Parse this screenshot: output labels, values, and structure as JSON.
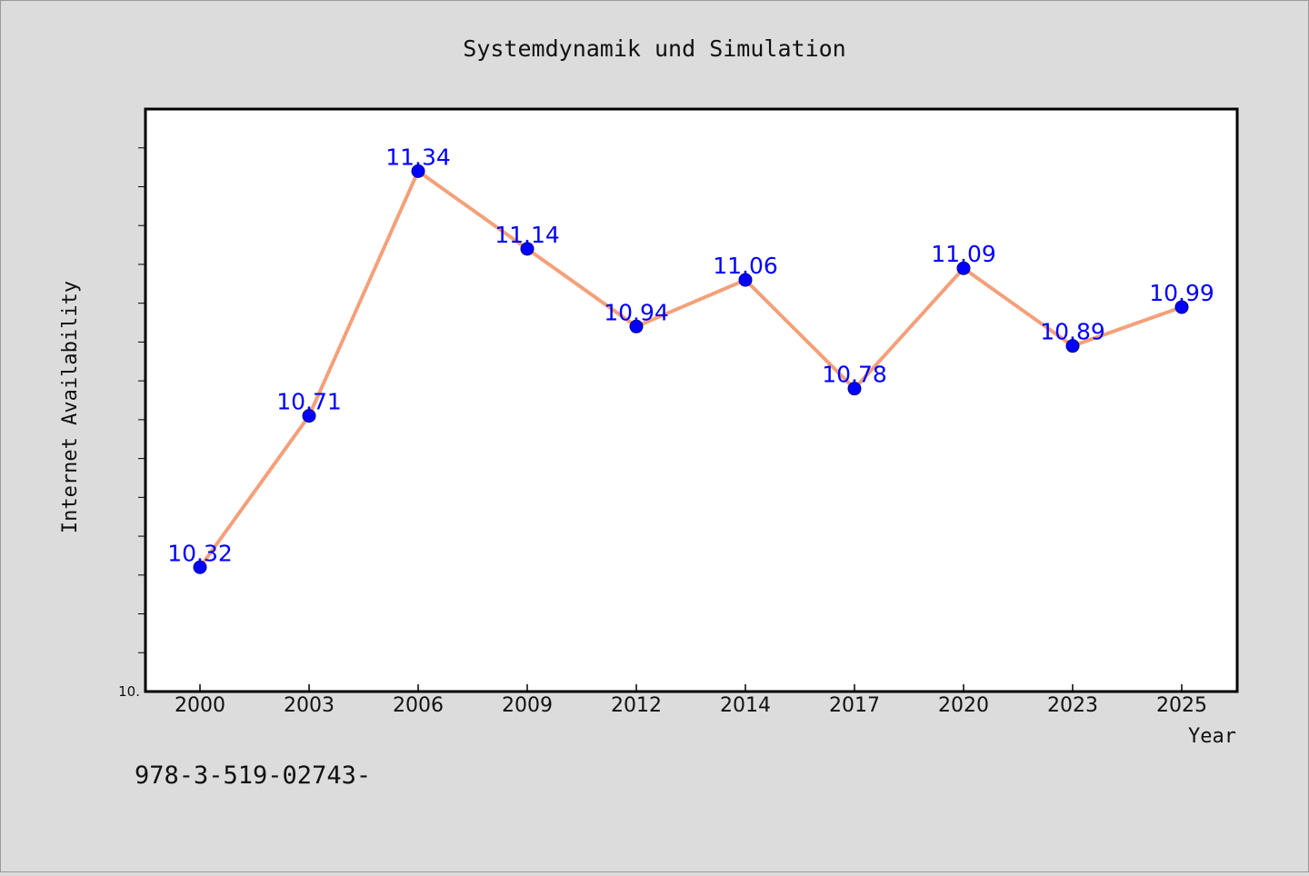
{
  "chart_data": {
    "type": "line",
    "title": "Systemdynamik und Simulation",
    "xlabel": "Year",
    "ylabel": "Internet Availability",
    "categories": [
      "2000",
      "2003",
      "2006",
      "2009",
      "2012",
      "2014",
      "2017",
      "2020",
      "2023",
      "2025"
    ],
    "series": [
      {
        "values": [
          10.32,
          10.71,
          11.34,
          11.14,
          10.94,
          11.06,
          10.78,
          11.09,
          10.89,
          10.99
        ]
      }
    ],
    "data_labels": [
      "10.32",
      "10.71",
      "11.34",
      "11.14",
      "10.94",
      "11.06",
      "10.78",
      "11.09",
      "10.89",
      "10.99"
    ],
    "ylim": [
      10.0,
      11.5
    ],
    "y_tick_label": "10.",
    "grid": false,
    "legend": "none",
    "colors": {
      "background": "#dcdcdc",
      "plot_background": "#ffffff",
      "line": "#f4a07a",
      "marker": "#0000ff",
      "data_label": "#0000ff"
    }
  },
  "footer": {
    "isbn_text": "978-3-519-02743-"
  }
}
